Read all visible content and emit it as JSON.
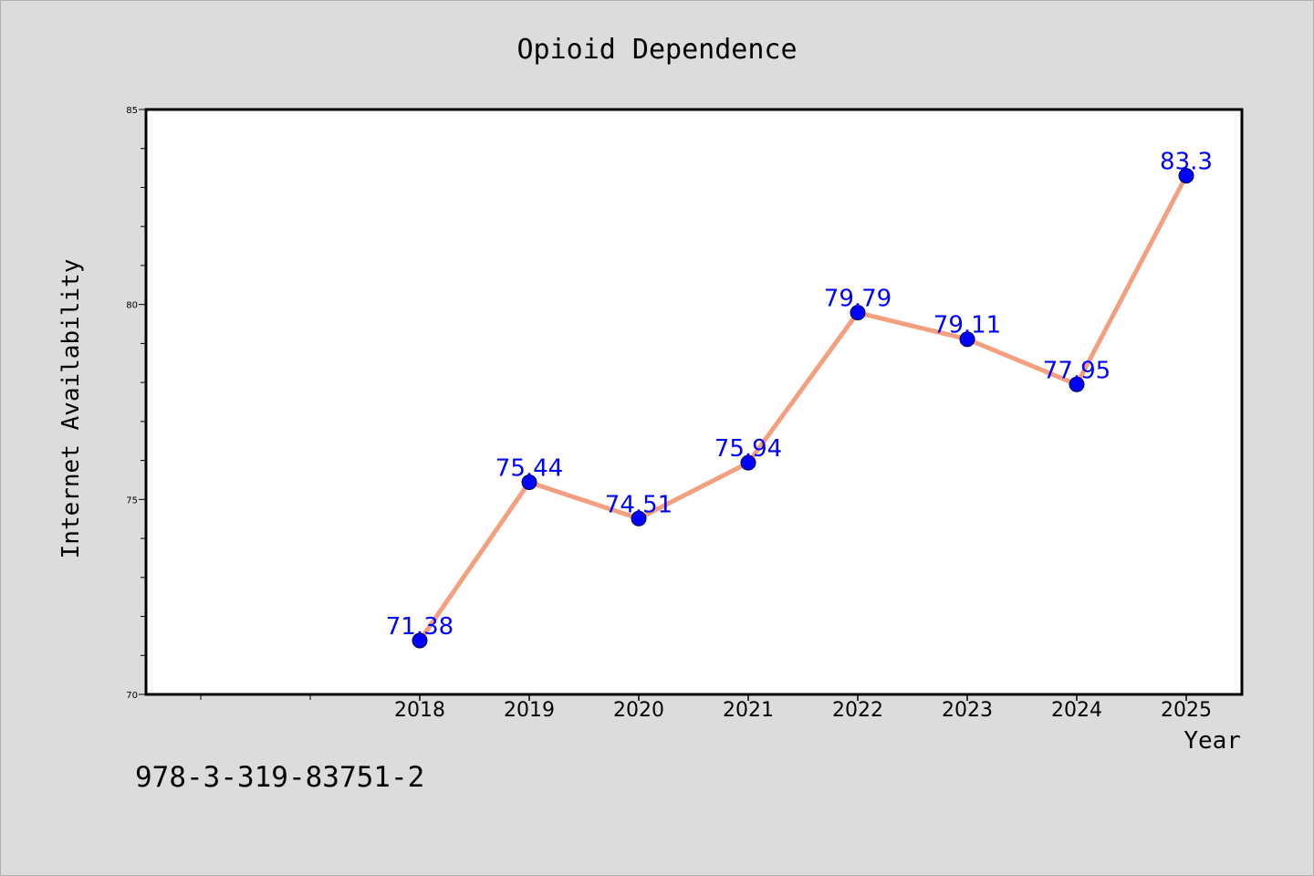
{
  "chart_data": {
    "type": "line",
    "title": "Opioid Dependence",
    "xlabel": "Year",
    "ylabel": "Internet Availability",
    "categories": [
      "2018",
      "2019",
      "2020",
      "2021",
      "2022",
      "2023",
      "2024",
      "2025"
    ],
    "series": [
      {
        "values": [
          71.38,
          75.44,
          74.51,
          75.94,
          79.79,
          79.11,
          77.95,
          83.3
        ],
        "labels": [
          "71.38",
          "75.44",
          "74.51",
          "75.94",
          "79.79",
          "79.11",
          "77.95",
          "83.3"
        ],
        "line_color": "#f4a080",
        "marker_color": "#0000ff"
      }
    ],
    "ylim": [
      70,
      85
    ],
    "yticks": [
      "70",
      "75",
      "80",
      "85"
    ],
    "grid": false,
    "legend": "none"
  },
  "footnote": "978-3-319-83751-2",
  "colors": {
    "background": "#dcdcdc",
    "plot_background": "#ffffff",
    "label_color": "#0000ff"
  }
}
